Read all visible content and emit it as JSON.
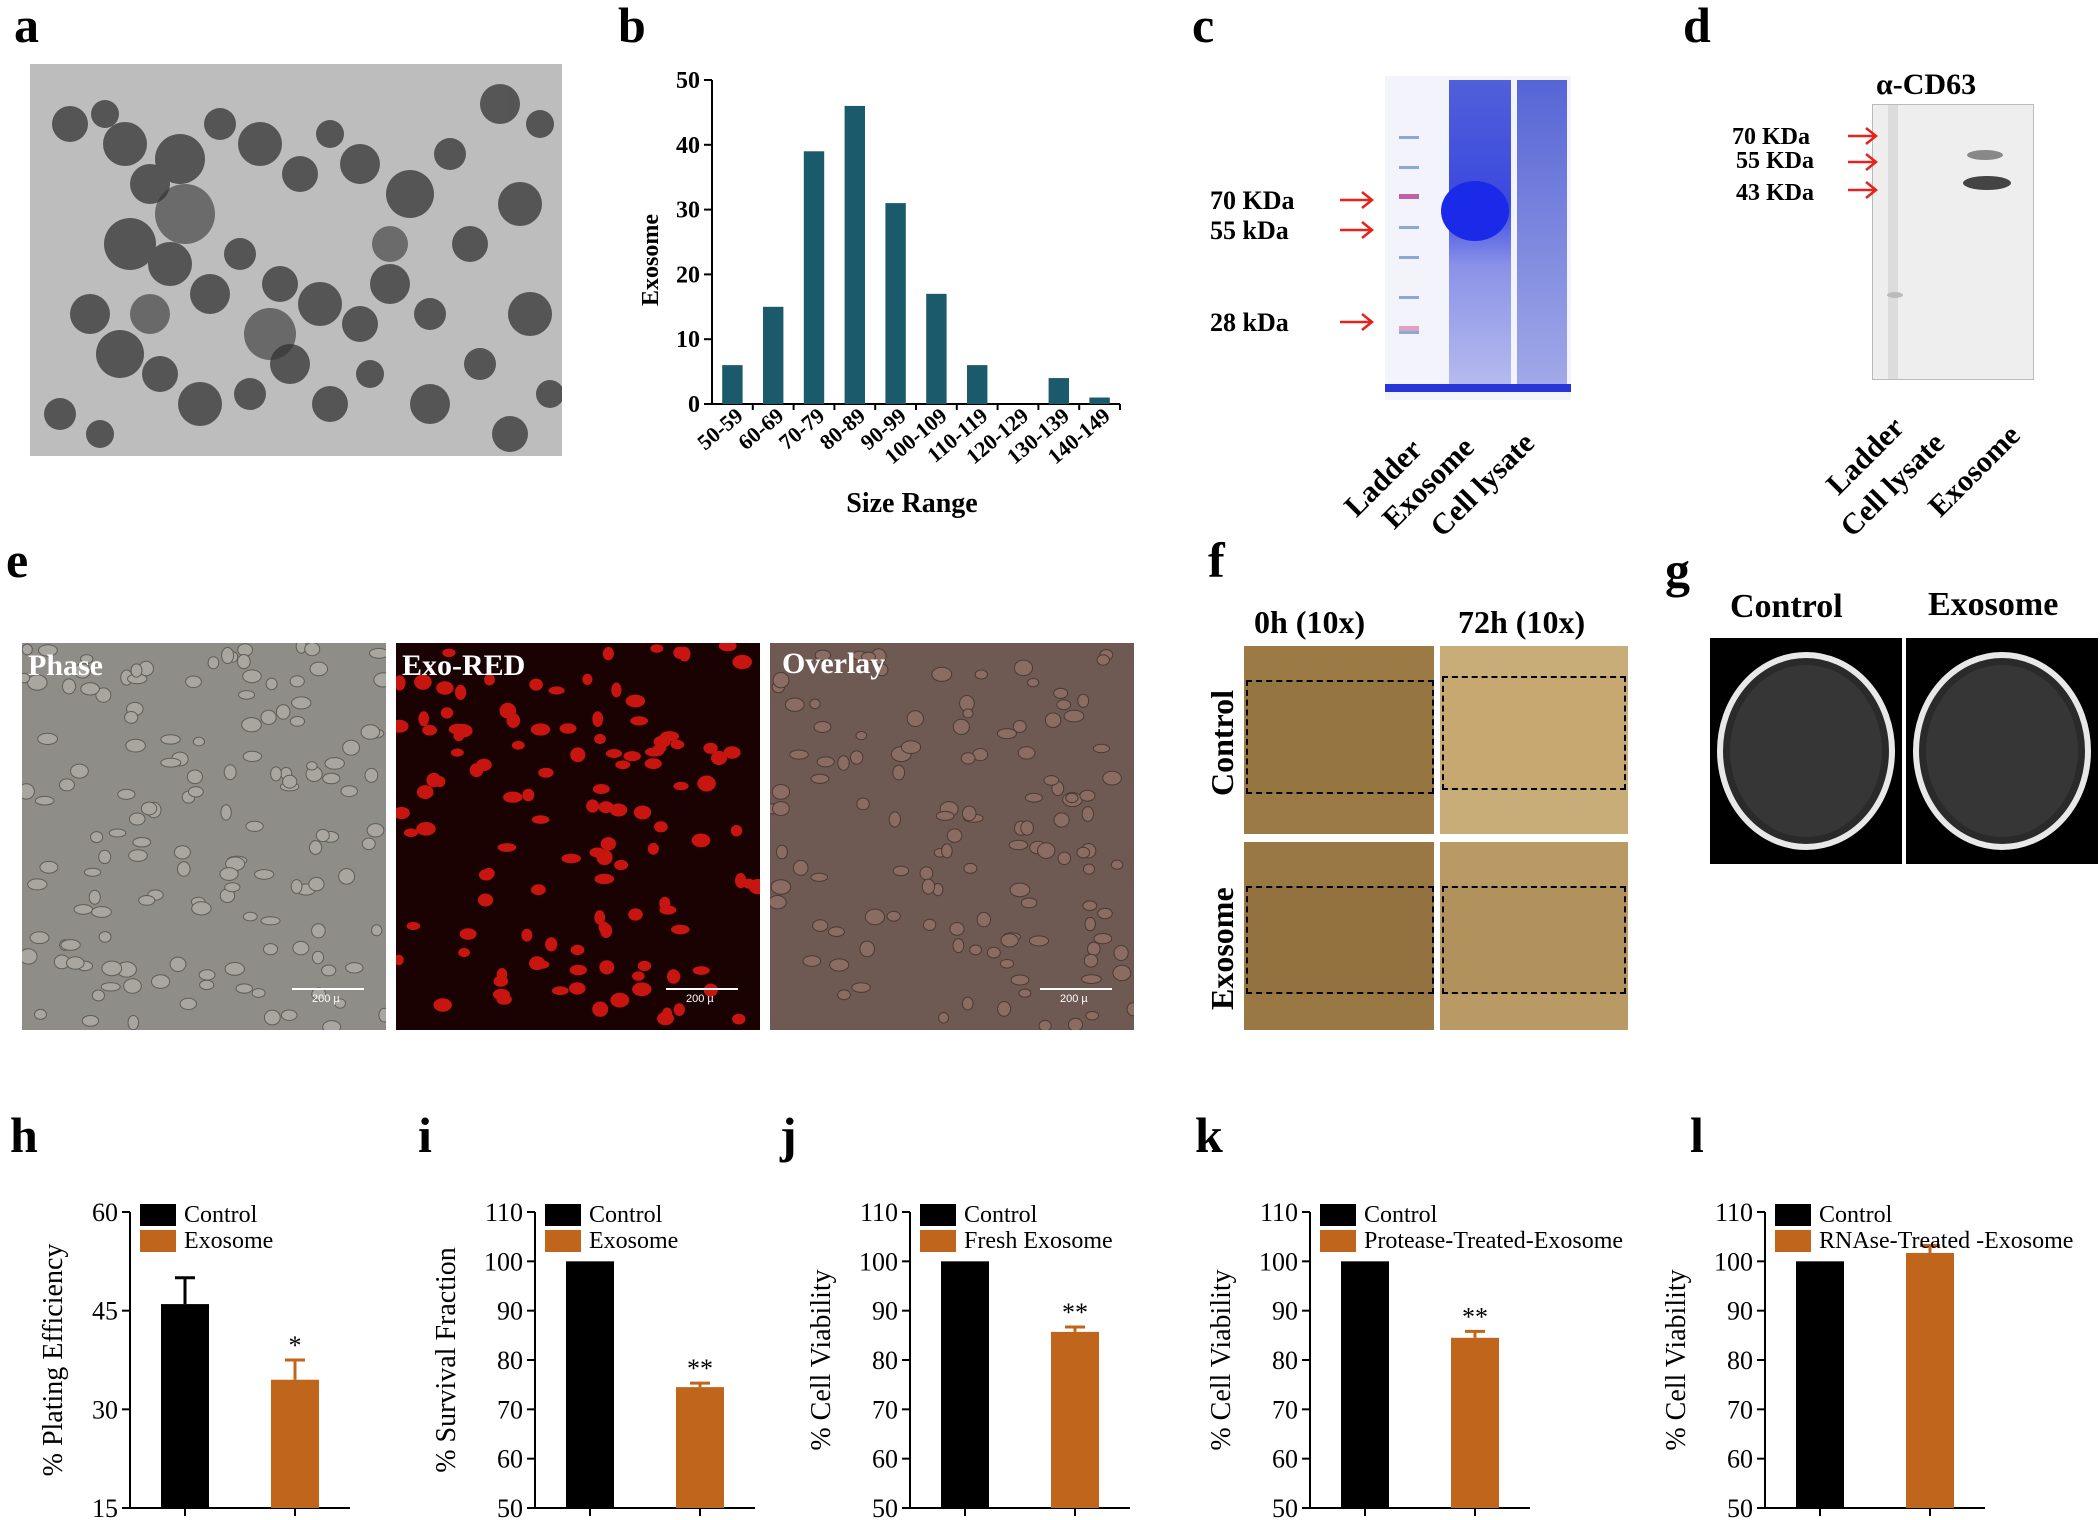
{
  "panels": {
    "a": {
      "letter": "a"
    },
    "b": {
      "letter": "b"
    },
    "c": {
      "letter": "c",
      "markers": [
        "70 KDa",
        "55 kDa",
        "28 kDa"
      ],
      "lanes": [
        "Ladder",
        "Exosome",
        "Cell lysate"
      ]
    },
    "d": {
      "letter": "d",
      "title": "α-CD63",
      "markers": [
        "70 KDa",
        "55 KDa",
        "43 KDa"
      ],
      "lanes": [
        "Ladder",
        "Cell lysate",
        "Exosome"
      ]
    },
    "e": {
      "letter": "e",
      "images": [
        "Phase",
        "Exo-RED",
        "Overlay"
      ],
      "scale": "200 µ"
    },
    "f": {
      "letter": "f",
      "cols": [
        "0h (10x)",
        "72h (10x)"
      ],
      "rows": [
        "Control",
        "Exosome"
      ]
    },
    "g": {
      "letter": "g",
      "cols": [
        "Control",
        "Exosome"
      ]
    },
    "h": {
      "letter": "h"
    },
    "i": {
      "letter": "i"
    },
    "j": {
      "letter": "j"
    },
    "k": {
      "letter": "k"
    },
    "l": {
      "letter": "l"
    }
  },
  "colors": {
    "teal": "#1b5a6b",
    "black": "#000000",
    "orange": "#c0651c",
    "red_arrow": "#e8221a"
  },
  "chart_data": [
    {
      "id": "b",
      "type": "bar",
      "categories": [
        "50-59",
        "60-69",
        "70-79",
        "80-89",
        "90-99",
        "100-109",
        "110-119",
        "120-129",
        "130-139",
        "140-149"
      ],
      "values": [
        6,
        15,
        39,
        46,
        31,
        17,
        6,
        0,
        4,
        1
      ],
      "xlabel": "Size Range",
      "ylabel": "Exosome",
      "ylim": [
        0,
        50
      ],
      "yticks": [
        0,
        10,
        20,
        30,
        40,
        50
      ]
    },
    {
      "id": "h",
      "type": "bar",
      "categories": [
        "Control",
        "Exosome"
      ],
      "values": [
        46,
        34.5
      ],
      "errors": [
        4,
        3
      ],
      "significance": [
        "",
        "*"
      ],
      "ylabel": "% Plating Efficiency",
      "ylim": [
        15,
        60
      ],
      "yticks": [
        15,
        30,
        45,
        60
      ],
      "legend": [
        "Control",
        "Exosome"
      ]
    },
    {
      "id": "i",
      "type": "bar",
      "categories": [
        "Control",
        "Exosome"
      ],
      "values": [
        100,
        74.5
      ],
      "errors": [
        0,
        0.8
      ],
      "significance": [
        "",
        "**"
      ],
      "ylabel": "% Survival Fraction",
      "ylim": [
        50,
        110
      ],
      "yticks": [
        50,
        60,
        70,
        80,
        90,
        100,
        110
      ],
      "legend": [
        "Control",
        "Exosome"
      ]
    },
    {
      "id": "j",
      "type": "bar",
      "categories": [
        "Control",
        "Fresh Exosome"
      ],
      "values": [
        100,
        85.7
      ],
      "errors": [
        0,
        1
      ],
      "significance": [
        "",
        "**"
      ],
      "ylabel": "% Cell Viability",
      "ylim": [
        50,
        110
      ],
      "yticks": [
        50,
        60,
        70,
        80,
        90,
        100,
        110
      ],
      "legend": [
        "Control",
        "Fresh Exosome"
      ]
    },
    {
      "id": "k",
      "type": "bar",
      "categories": [
        "Control",
        "Protease-Treated-Exosome"
      ],
      "values": [
        100,
        84.5
      ],
      "errors": [
        0,
        1.3
      ],
      "significance": [
        "",
        "**"
      ],
      "ylabel": "% Cell Viability",
      "ylim": [
        50,
        110
      ],
      "yticks": [
        50,
        60,
        70,
        80,
        90,
        100,
        110
      ],
      "legend": [
        "Control",
        "Protease-Treated-Exosome"
      ]
    },
    {
      "id": "l",
      "type": "bar",
      "categories": [
        "Control",
        "RNAse-Treated -Exosome"
      ],
      "values": [
        100,
        101.7
      ],
      "errors": [
        0,
        1.5
      ],
      "significance": [
        "",
        ""
      ],
      "ylabel": "% Cell Viability",
      "ylim": [
        50,
        110
      ],
      "yticks": [
        50,
        60,
        70,
        80,
        90,
        100,
        110
      ],
      "legend": [
        "Control",
        "RNAse-Treated -Exosome"
      ]
    }
  ]
}
